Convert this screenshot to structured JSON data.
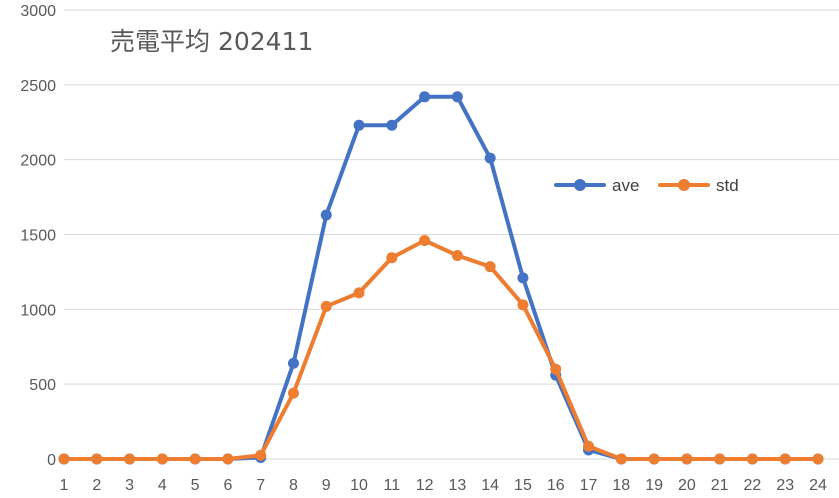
{
  "chart_data": {
    "type": "line",
    "title": "売電平均 202411",
    "xlabel": "",
    "ylabel": "",
    "categories": [
      "1",
      "2",
      "3",
      "4",
      "5",
      "6",
      "7",
      "8",
      "9",
      "10",
      "11",
      "12",
      "13",
      "14",
      "15",
      "16",
      "17",
      "18",
      "19",
      "20",
      "21",
      "22",
      "23",
      "24"
    ],
    "ylim": [
      0,
      3000
    ],
    "yticks": [
      0,
      500,
      1000,
      1500,
      2000,
      2500,
      3000
    ],
    "grid": true,
    "legend_position": "right",
    "series": [
      {
        "name": "ave",
        "color": "#4472c4",
        "values": [
          0,
          0,
          0,
          0,
          0,
          0,
          10,
          640,
          1630,
          2230,
          2230,
          2420,
          2420,
          2010,
          1210,
          560,
          60,
          0,
          0,
          0,
          0,
          0,
          0,
          0
        ]
      },
      {
        "name": "std",
        "color": "#ed7d31",
        "values": [
          0,
          0,
          0,
          0,
          0,
          0,
          25,
          440,
          1020,
          1110,
          1345,
          1460,
          1360,
          1285,
          1030,
          600,
          85,
          0,
          0,
          0,
          0,
          0,
          0,
          0
        ]
      }
    ]
  }
}
